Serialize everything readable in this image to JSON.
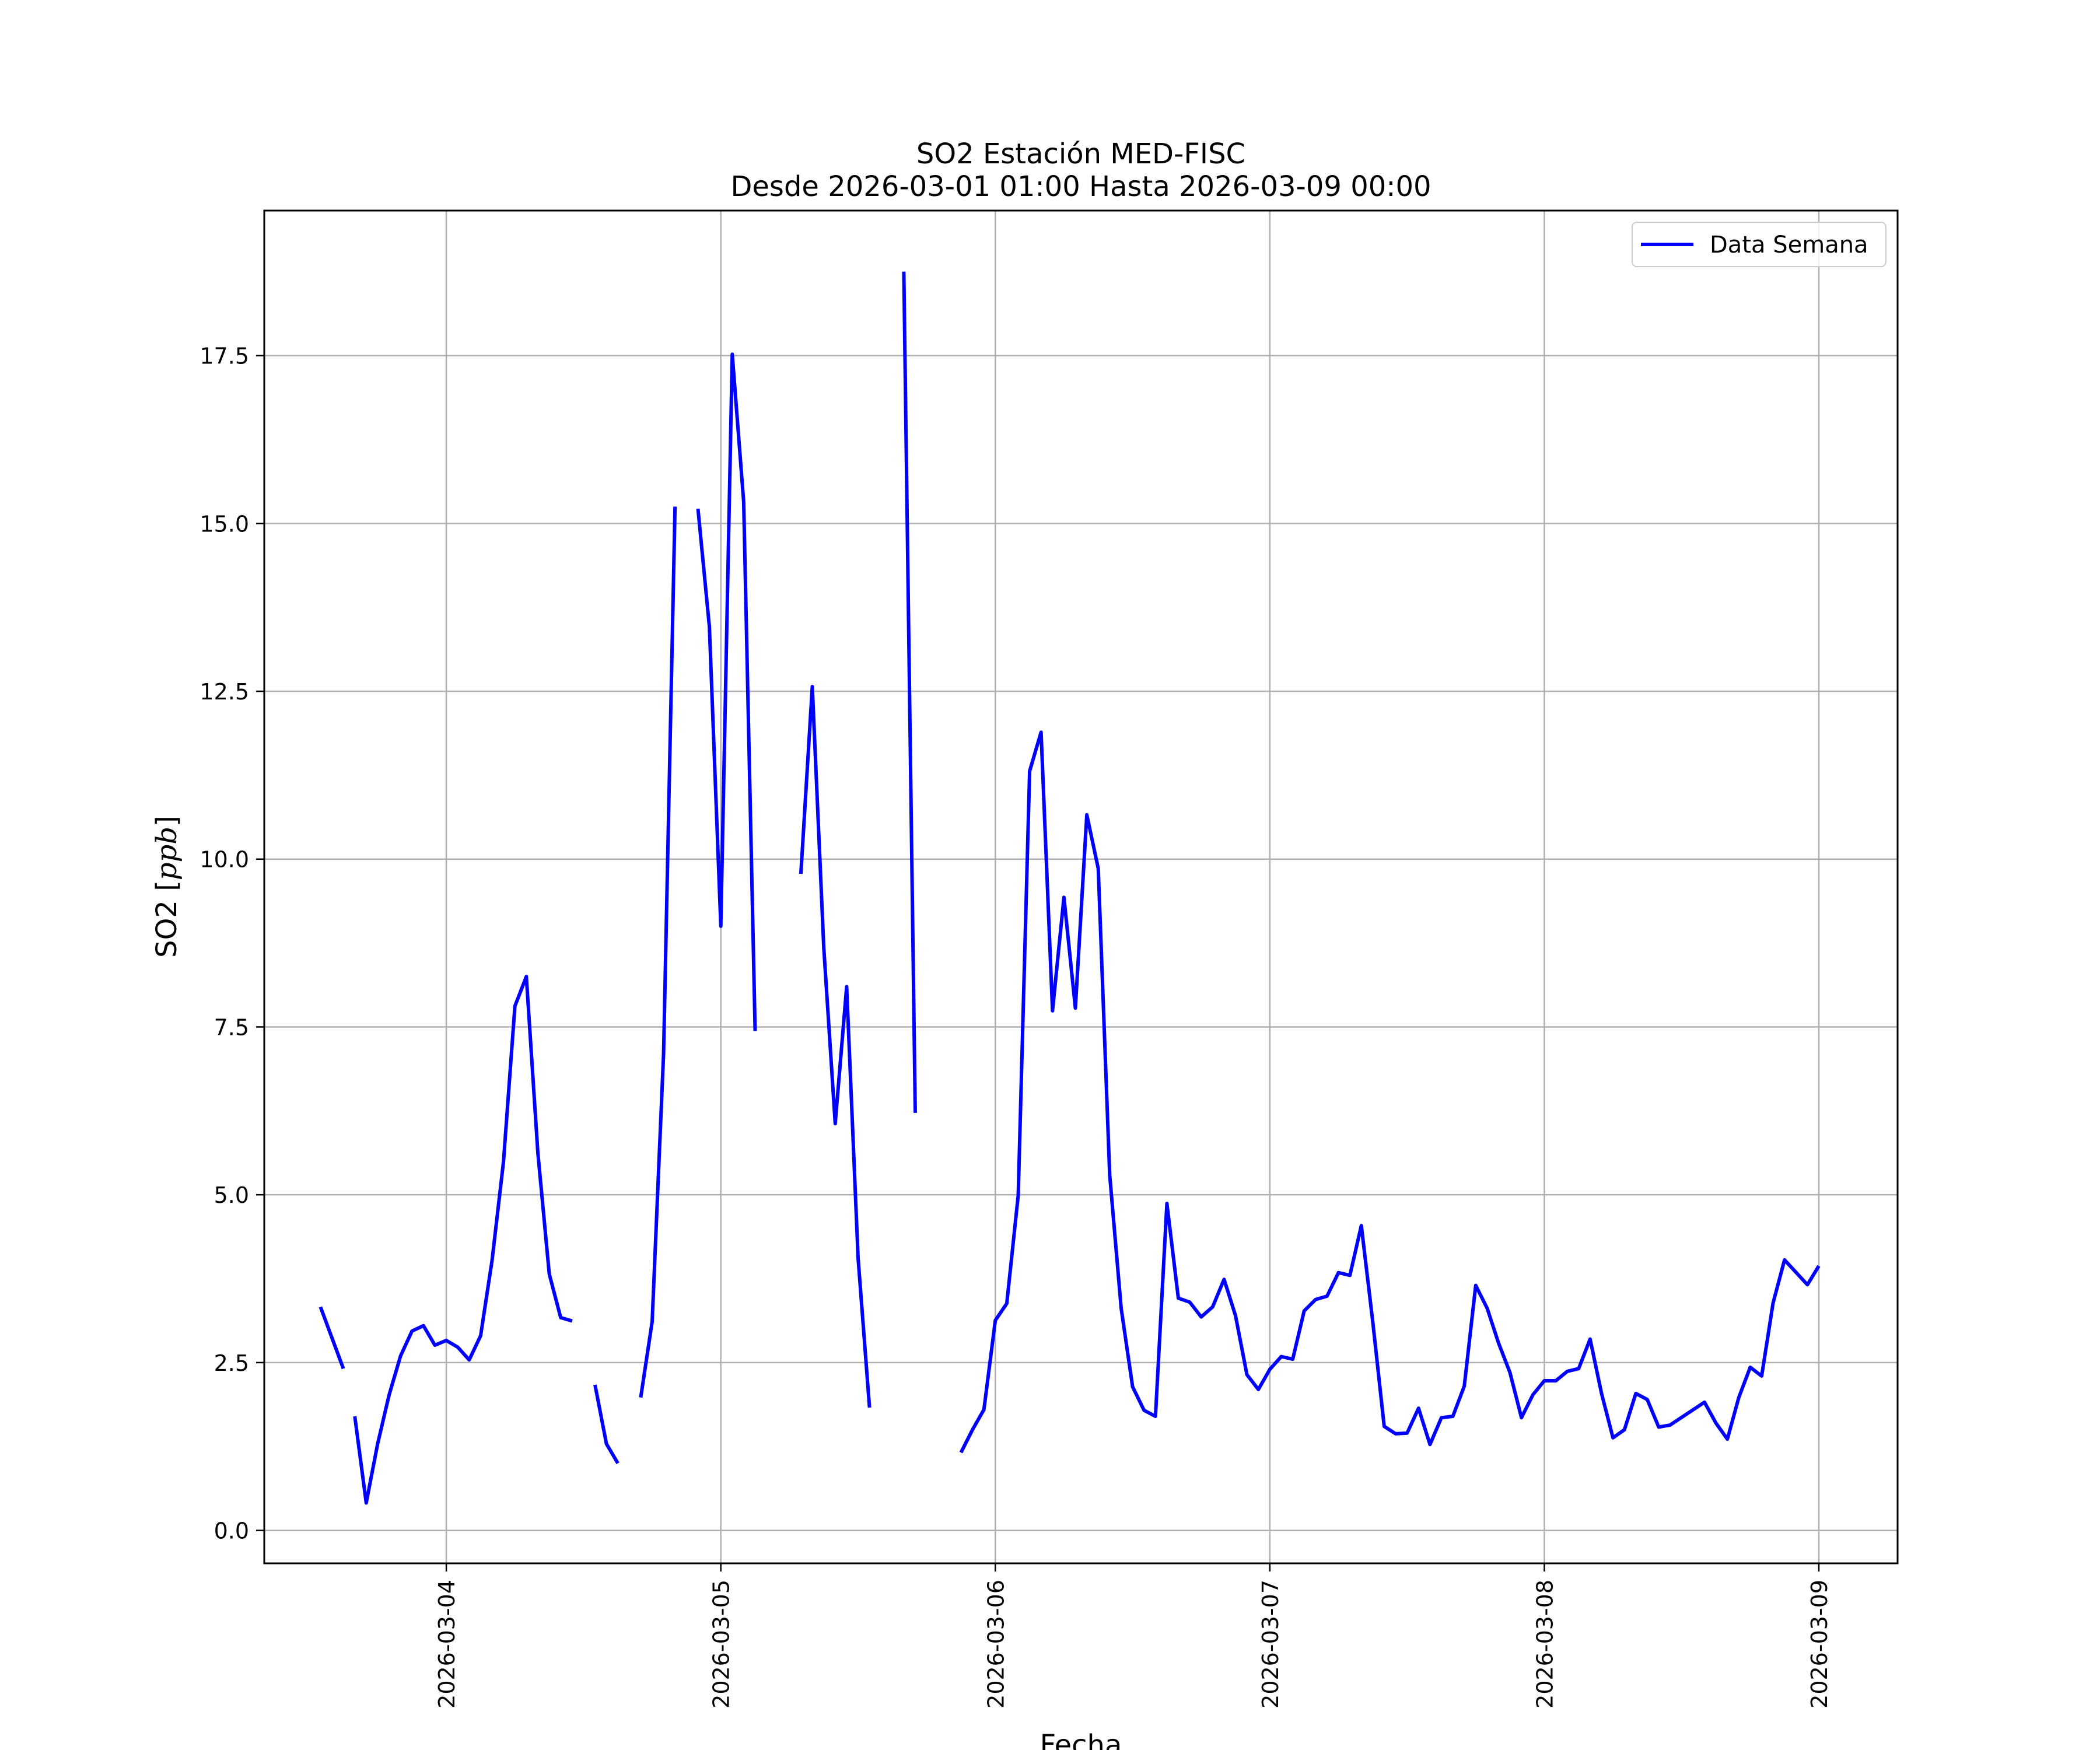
{
  "chart_data": {
    "type": "line",
    "title": "SO2 Estación MED-FISC",
    "subtitle": "Desde 2026-03-01 01:00 Hasta 2026-03-09 00:00",
    "xlabel": "Fecha",
    "ylabel_prefix": "SO2 [",
    "ylabel_unit": "ppb",
    "ylabel_suffix": "]",
    "xlim": [
      "2026-03-03 08:05",
      "2026-03-09 06:53"
    ],
    "ylim": [
      -0.49,
      19.66
    ],
    "grid": true,
    "legend_position": "top-right",
    "x_ticks": [
      "2026-03-04",
      "2026-03-05",
      "2026-03-06",
      "2026-03-07",
      "2026-03-08",
      "2026-03-09"
    ],
    "y_ticks": [
      "0.0",
      "2.5",
      "5.0",
      "7.5",
      "10.0",
      "12.5",
      "15.0",
      "17.5"
    ],
    "series": [
      {
        "name": "Data Semana",
        "color": "#0000ff",
        "segments": [
          [
            [
              "2026-03-03 13:00",
              3.33
            ],
            [
              "2026-03-03 15:00",
              2.41
            ]
          ],
          [
            [
              "2026-03-03 16:00",
              1.7
            ],
            [
              "2026-03-03 17:00",
              0.41
            ],
            [
              "2026-03-03 18:00",
              1.29
            ],
            [
              "2026-03-03 19:00",
              2.02
            ],
            [
              "2026-03-03 20:00",
              2.6
            ],
            [
              "2026-03-03 21:00",
              2.97
            ],
            [
              "2026-03-03 22:00",
              3.05
            ],
            [
              "2026-03-03 23:00",
              2.76
            ],
            [
              "2026-03-04 00:00",
              2.83
            ],
            [
              "2026-03-04 01:00",
              2.73
            ],
            [
              "2026-03-04 02:00",
              2.54
            ],
            [
              "2026-03-04 03:00",
              2.9
            ],
            [
              "2026-03-04 04:00",
              4.02
            ],
            [
              "2026-03-04 05:00",
              5.49
            ],
            [
              "2026-03-04 06:00",
              7.81
            ],
            [
              "2026-03-04 07:00",
              8.25
            ],
            [
              "2026-03-04 08:00",
              5.63
            ],
            [
              "2026-03-04 09:00",
              3.82
            ],
            [
              "2026-03-04 10:00",
              3.17
            ],
            [
              "2026-03-04 11:00",
              3.12
            ]
          ],
          [
            [
              "2026-03-04 13:00",
              2.17
            ],
            [
              "2026-03-04 14:00",
              1.29
            ],
            [
              "2026-03-04 15:00",
              1.0
            ]
          ],
          [
            [
              "2026-03-04 17:00",
              1.98
            ],
            [
              "2026-03-04 18:00",
              3.11
            ],
            [
              "2026-03-04 19:00",
              7.11
            ],
            [
              "2026-03-04 20:00",
              15.25
            ]
          ],
          [
            [
              "2026-03-04 22:00",
              15.22
            ],
            [
              "2026-03-04 23:00",
              13.46
            ],
            [
              "2026-03-05 00:00",
              9.0
            ],
            [
              "2026-03-05 01:00",
              17.52
            ],
            [
              "2026-03-05 02:00",
              15.32
            ],
            [
              "2026-03-05 03:00",
              7.44
            ]
          ],
          [
            [
              "2026-03-05 07:00",
              9.78
            ],
            [
              "2026-03-05 08:00",
              12.57
            ],
            [
              "2026-03-05 09:00",
              8.68
            ],
            [
              "2026-03-05 10:00",
              6.06
            ],
            [
              "2026-03-05 11:00",
              8.1
            ],
            [
              "2026-03-05 12:00",
              4.06
            ],
            [
              "2026-03-05 13:00",
              1.83
            ]
          ],
          [
            [
              "2026-03-05 16:00",
              18.75
            ],
            [
              "2026-03-05 17:00",
              6.22
            ]
          ],
          [
            [
              "2026-03-05 21:00",
              1.16
            ],
            [
              "2026-03-05 22:00",
              1.5
            ],
            [
              "2026-03-05 23:00",
              1.8
            ],
            [
              "2026-03-06 00:00",
              3.13
            ],
            [
              "2026-03-06 01:00",
              3.38
            ],
            [
              "2026-03-06 02:00",
              4.99
            ],
            [
              "2026-03-06 03:00",
              11.31
            ],
            [
              "2026-03-06 04:00",
              11.89
            ],
            [
              "2026-03-06 05:00",
              7.74
            ],
            [
              "2026-03-06 06:00",
              9.43
            ],
            [
              "2026-03-06 07:00",
              7.78
            ],
            [
              "2026-03-06 08:00",
              10.66
            ],
            [
              "2026-03-06 09:00",
              9.86
            ],
            [
              "2026-03-06 10:00",
              5.3
            ],
            [
              "2026-03-06 11:00",
              3.31
            ],
            [
              "2026-03-06 12:00",
              2.14
            ],
            [
              "2026-03-06 13:00",
              1.79
            ],
            [
              "2026-03-06 14:00",
              1.7
            ],
            [
              "2026-03-06 15:00",
              4.87
            ],
            [
              "2026-03-06 16:00",
              3.46
            ],
            [
              "2026-03-06 17:00",
              3.4
            ],
            [
              "2026-03-06 18:00",
              3.18
            ],
            [
              "2026-03-06 19:00",
              3.33
            ],
            [
              "2026-03-06 20:00",
              3.74
            ],
            [
              "2026-03-06 21:00",
              3.2
            ],
            [
              "2026-03-06 22:00",
              2.32
            ],
            [
              "2026-03-06 23:00",
              2.1
            ],
            [
              "2026-03-07 00:00",
              2.4
            ],
            [
              "2026-03-07 01:00",
              2.59
            ],
            [
              "2026-03-07 02:00",
              2.55
            ],
            [
              "2026-03-07 03:00",
              3.27
            ],
            [
              "2026-03-07 04:00",
              3.44
            ],
            [
              "2026-03-07 05:00",
              3.49
            ],
            [
              "2026-03-07 06:00",
              3.84
            ],
            [
              "2026-03-07 07:00",
              3.8
            ],
            [
              "2026-03-07 08:00",
              4.54
            ],
            [
              "2026-03-07 09:00",
              3.11
            ],
            [
              "2026-03-07 10:00",
              1.55
            ],
            [
              "2026-03-07 11:00",
              1.44
            ],
            [
              "2026-03-07 12:00",
              1.45
            ],
            [
              "2026-03-07 13:00",
              1.82
            ],
            [
              "2026-03-07 14:00",
              1.28
            ],
            [
              "2026-03-07 15:00",
              1.68
            ],
            [
              "2026-03-07 16:00",
              1.7
            ],
            [
              "2026-03-07 17:00",
              2.15
            ],
            [
              "2026-03-07 18:00",
              3.65
            ],
            [
              "2026-03-07 19:00",
              3.31
            ],
            [
              "2026-03-07 20:00",
              2.79
            ],
            [
              "2026-03-07 21:00",
              2.35
            ],
            [
              "2026-03-07 22:00",
              1.68
            ],
            [
              "2026-03-07 23:00",
              2.02
            ],
            [
              "2026-03-08 00:00",
              2.23
            ],
            [
              "2026-03-08 01:00",
              2.23
            ],
            [
              "2026-03-08 02:00",
              2.37
            ],
            [
              "2026-03-08 03:00",
              2.41
            ],
            [
              "2026-03-08 04:00",
              2.85
            ],
            [
              "2026-03-08 05:00",
              2.04
            ],
            [
              "2026-03-08 06:00",
              1.38
            ],
            [
              "2026-03-08 07:00",
              1.5
            ],
            [
              "2026-03-08 08:00",
              2.04
            ],
            [
              "2026-03-08 09:00",
              1.95
            ],
            [
              "2026-03-08 10:00",
              1.54
            ],
            [
              "2026-03-08 11:00",
              1.57
            ],
            [
              "2026-03-08 14:00",
              1.91
            ],
            [
              "2026-03-08 15:00",
              1.6
            ],
            [
              "2026-03-08 16:00",
              1.36
            ],
            [
              "2026-03-08 17:00",
              1.98
            ],
            [
              "2026-03-08 18:00",
              2.43
            ],
            [
              "2026-03-08 19:00",
              2.3
            ],
            [
              "2026-03-08 20:00",
              3.39
            ],
            [
              "2026-03-08 21:00",
              4.03
            ],
            [
              "2026-03-08 23:00",
              3.66
            ],
            [
              "2026-03-09 00:00",
              3.94
            ]
          ]
        ]
      }
    ]
  }
}
